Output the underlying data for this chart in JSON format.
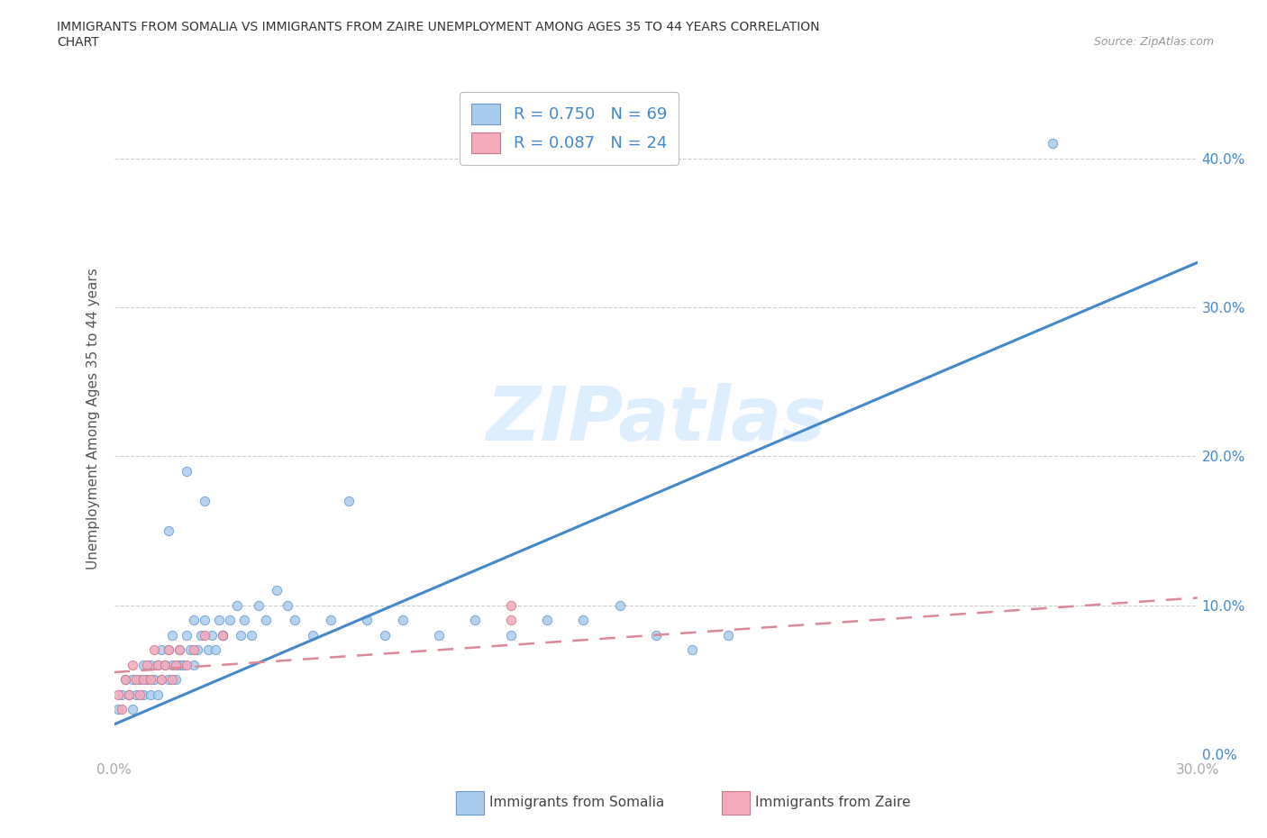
{
  "title_line1": "IMMIGRANTS FROM SOMALIA VS IMMIGRANTS FROM ZAIRE UNEMPLOYMENT AMONG AGES 35 TO 44 YEARS CORRELATION",
  "title_line2": "CHART",
  "source": "Source: ZipAtlas.com",
  "ylabel": "Unemployment Among Ages 35 to 44 years",
  "legend_label1": "Immigrants from Somalia",
  "legend_label2": "Immigrants from Zaire",
  "r1": 0.75,
  "n1": 69,
  "r2": 0.087,
  "n2": 24,
  "xlim": [
    0.0,
    0.3
  ],
  "ylim": [
    0.0,
    0.45
  ],
  "yticks": [
    0.0,
    0.1,
    0.2,
    0.3,
    0.4
  ],
  "color_somalia": "#aaccee",
  "color_somalia_edge": "#6699cc",
  "color_zaire": "#f5aabb",
  "color_zaire_edge": "#cc7788",
  "line_color_somalia": "#4488cc",
  "line_color_zaire": "#dd8898",
  "watermark": "ZIPatlas",
  "watermark_color": "#ddeeff",
  "somalia_x": [
    0.001,
    0.002,
    0.003,
    0.004,
    0.005,
    0.005,
    0.006,
    0.007,
    0.008,
    0.008,
    0.009,
    0.01,
    0.01,
    0.011,
    0.012,
    0.012,
    0.013,
    0.013,
    0.014,
    0.015,
    0.015,
    0.016,
    0.016,
    0.017,
    0.018,
    0.018,
    0.019,
    0.02,
    0.021,
    0.022,
    0.022,
    0.023,
    0.024,
    0.025,
    0.026,
    0.027,
    0.028,
    0.029,
    0.03,
    0.032,
    0.034,
    0.036,
    0.038,
    0.04,
    0.042,
    0.045,
    0.048,
    0.05,
    0.055,
    0.06,
    0.065,
    0.07,
    0.075,
    0.08,
    0.09,
    0.1,
    0.11,
    0.12,
    0.13,
    0.14,
    0.15,
    0.16,
    0.17,
    0.02,
    0.025,
    0.03,
    0.035,
    0.26,
    0.015
  ],
  "somalia_y": [
    0.03,
    0.04,
    0.05,
    0.04,
    0.03,
    0.05,
    0.04,
    0.05,
    0.04,
    0.06,
    0.05,
    0.04,
    0.06,
    0.05,
    0.04,
    0.06,
    0.05,
    0.07,
    0.06,
    0.05,
    0.07,
    0.06,
    0.08,
    0.05,
    0.06,
    0.07,
    0.06,
    0.08,
    0.07,
    0.06,
    0.09,
    0.07,
    0.08,
    0.09,
    0.07,
    0.08,
    0.07,
    0.09,
    0.08,
    0.09,
    0.1,
    0.09,
    0.08,
    0.1,
    0.09,
    0.11,
    0.1,
    0.09,
    0.08,
    0.09,
    0.17,
    0.09,
    0.08,
    0.09,
    0.08,
    0.09,
    0.08,
    0.09,
    0.09,
    0.1,
    0.08,
    0.07,
    0.08,
    0.19,
    0.17,
    0.08,
    0.08,
    0.41,
    0.15
  ],
  "zaire_x": [
    0.001,
    0.002,
    0.003,
    0.004,
    0.005,
    0.006,
    0.007,
    0.008,
    0.009,
    0.01,
    0.011,
    0.012,
    0.013,
    0.014,
    0.015,
    0.016,
    0.017,
    0.018,
    0.02,
    0.022,
    0.025,
    0.03,
    0.11,
    0.11
  ],
  "zaire_y": [
    0.04,
    0.03,
    0.05,
    0.04,
    0.06,
    0.05,
    0.04,
    0.05,
    0.06,
    0.05,
    0.07,
    0.06,
    0.05,
    0.06,
    0.07,
    0.05,
    0.06,
    0.07,
    0.06,
    0.07,
    0.08,
    0.08,
    0.09,
    0.1
  ],
  "line1_x0": 0.0,
  "line1_y0": 0.02,
  "line1_x1": 0.3,
  "line1_y1": 0.33,
  "line2_x0": 0.0,
  "line2_y0": 0.055,
  "line2_x1": 0.3,
  "line2_y1": 0.105
}
